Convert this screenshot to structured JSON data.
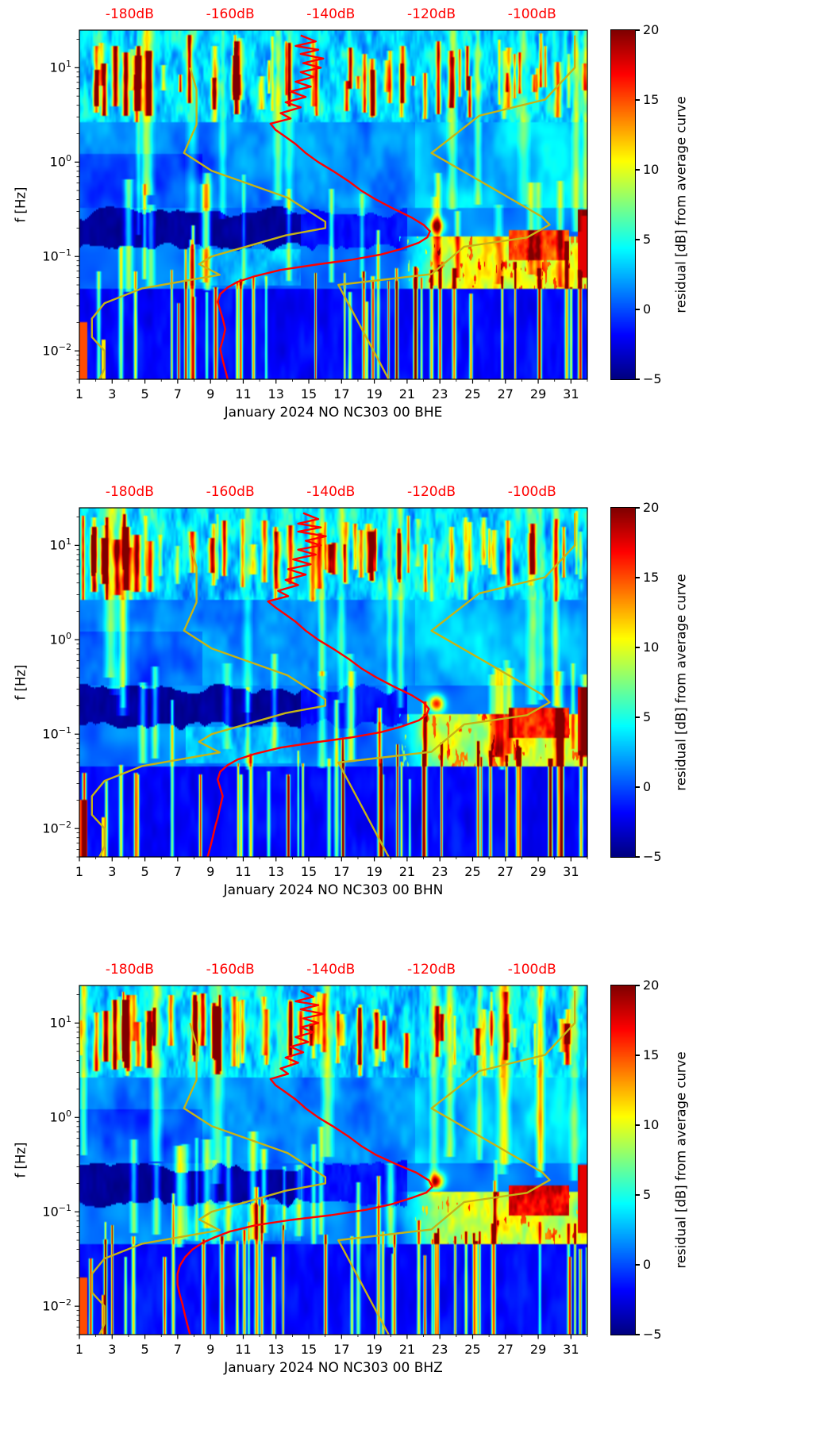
{
  "chart_data": [
    {
      "type": "heatmap",
      "component": "BHE",
      "title": "January 2024 NO NC303 00 BHE",
      "ylabel": "f [Hz]",
      "y_scale": "log",
      "y_range_hz": [
        0.005,
        25
      ],
      "y_tick_values": [
        10,
        1,
        0.1,
        0.01
      ],
      "x_tick_days": [
        1,
        3,
        5,
        7,
        9,
        11,
        13,
        15,
        17,
        19,
        21,
        23,
        25,
        27,
        29,
        31
      ],
      "x_range_days": [
        1,
        32
      ],
      "top_axis": {
        "tick_labels": [
          "-180dB",
          "-160dB",
          "-140dB",
          "-120dB",
          "-100dB"
        ],
        "tick_values": [
          -180,
          -160,
          -140,
          -120,
          -100
        ],
        "range_db": [
          -190,
          -89
        ],
        "color": "#ff0000"
      },
      "colorbar": {
        "label": "residual [dB] from average curve",
        "tick_values": [
          20,
          15,
          10,
          5,
          0,
          -5
        ],
        "range": [
          -5,
          20
        ],
        "colormap": "jet"
      },
      "curves": {
        "average_psd_color": "#ff0000",
        "model_color": "#c6b416",
        "average_psd_db_vs_hz": [
          [
            22,
            -146
          ],
          [
            19,
            -143
          ],
          [
            17,
            -147
          ],
          [
            15.5,
            -142.5
          ],
          [
            14,
            -146
          ],
          [
            12.5,
            -141.5
          ],
          [
            11.2,
            -145.5
          ],
          [
            10,
            -142
          ],
          [
            9,
            -146
          ],
          [
            8,
            -143.5
          ],
          [
            7.1,
            -147
          ],
          [
            6.3,
            -144
          ],
          [
            5.6,
            -148
          ],
          [
            4.9,
            -145
          ],
          [
            4.3,
            -149
          ],
          [
            3.8,
            -146
          ],
          [
            3.3,
            -150
          ],
          [
            2.9,
            -148
          ],
          [
            2.55,
            -152
          ],
          [
            2.2,
            -151
          ],
          [
            1.85,
            -149
          ],
          [
            1.55,
            -147
          ],
          [
            1.25,
            -145
          ],
          [
            1.0,
            -142.5
          ],
          [
            0.8,
            -139.5
          ],
          [
            0.63,
            -136.5
          ],
          [
            0.5,
            -134
          ],
          [
            0.4,
            -131
          ],
          [
            0.32,
            -127.5
          ],
          [
            0.26,
            -124
          ],
          [
            0.215,
            -121.5
          ],
          [
            0.185,
            -120.3
          ],
          [
            0.16,
            -120.8
          ],
          [
            0.14,
            -122.5
          ],
          [
            0.12,
            -126
          ],
          [
            0.105,
            -130
          ],
          [
            0.092,
            -136
          ],
          [
            0.082,
            -143
          ],
          [
            0.072,
            -150
          ],
          [
            0.062,
            -155
          ],
          [
            0.054,
            -158.5
          ],
          [
            0.047,
            -160.5
          ],
          [
            0.04,
            -162
          ],
          [
            0.033,
            -162.5
          ],
          [
            0.027,
            -162
          ],
          [
            0.022,
            -161.5
          ],
          [
            0.017,
            -161
          ],
          [
            0.013,
            -161.5
          ],
          [
            0.0105,
            -162
          ],
          [
            0.008,
            -161.5
          ],
          [
            0.0063,
            -161
          ],
          [
            0.005,
            -160.5
          ]
        ]
      },
      "heatmap": {
        "seed": 11
      }
    },
    {
      "type": "heatmap",
      "component": "BHN",
      "title": "January 2024 NO NC303 00 BHN",
      "ylabel": "f [Hz]",
      "y_scale": "log",
      "y_range_hz": [
        0.005,
        25
      ],
      "y_tick_values": [
        10,
        1,
        0.1,
        0.01
      ],
      "x_tick_days": [
        1,
        3,
        5,
        7,
        9,
        11,
        13,
        15,
        17,
        19,
        21,
        23,
        25,
        27,
        29,
        31
      ],
      "x_range_days": [
        1,
        32
      ],
      "top_axis": {
        "tick_labels": [
          "-180dB",
          "-160dB",
          "-140dB",
          "-120dB",
          "-100dB"
        ],
        "tick_values": [
          -180,
          -160,
          -140,
          -120,
          -100
        ],
        "range_db": [
          -190,
          -89
        ],
        "color": "#ff0000"
      },
      "colorbar": {
        "label": "residual [dB] from average curve",
        "tick_values": [
          20,
          15,
          10,
          5,
          0,
          -5
        ],
        "range": [
          -5,
          20
        ],
        "colormap": "jet"
      },
      "curves": {
        "average_psd_color": "#ff0000",
        "model_color": "#c6b416",
        "average_psd_db_vs_hz": [
          [
            22,
            -145.5
          ],
          [
            19,
            -142.5
          ],
          [
            17,
            -146.5
          ],
          [
            15.5,
            -142
          ],
          [
            14,
            -146.5
          ],
          [
            12.5,
            -141
          ],
          [
            11.2,
            -145
          ],
          [
            10,
            -142
          ],
          [
            9,
            -146.5
          ],
          [
            8,
            -143
          ],
          [
            7.1,
            -147.5
          ],
          [
            6.3,
            -144
          ],
          [
            5.6,
            -148.5
          ],
          [
            4.9,
            -145
          ],
          [
            4.3,
            -149
          ],
          [
            3.8,
            -146.5
          ],
          [
            3.3,
            -150.5
          ],
          [
            2.9,
            -148.5
          ],
          [
            2.55,
            -152.5
          ],
          [
            2.2,
            -151
          ],
          [
            1.85,
            -149
          ],
          [
            1.55,
            -147
          ],
          [
            1.25,
            -145
          ],
          [
            1.0,
            -142.5
          ],
          [
            0.8,
            -139.5
          ],
          [
            0.63,
            -136.5
          ],
          [
            0.5,
            -134
          ],
          [
            0.4,
            -131
          ],
          [
            0.32,
            -127.5
          ],
          [
            0.26,
            -124
          ],
          [
            0.215,
            -121.5
          ],
          [
            0.185,
            -120.5
          ],
          [
            0.16,
            -121
          ],
          [
            0.14,
            -122.5
          ],
          [
            0.12,
            -126
          ],
          [
            0.105,
            -130
          ],
          [
            0.092,
            -136
          ],
          [
            0.082,
            -143
          ],
          [
            0.072,
            -150
          ],
          [
            0.062,
            -155
          ],
          [
            0.054,
            -158.5
          ],
          [
            0.047,
            -160.5
          ],
          [
            0.04,
            -162
          ],
          [
            0.033,
            -162.5
          ],
          [
            0.027,
            -162
          ],
          [
            0.022,
            -161.5
          ],
          [
            0.017,
            -162
          ],
          [
            0.013,
            -162.5
          ],
          [
            0.0105,
            -163
          ],
          [
            0.008,
            -163.5
          ],
          [
            0.0063,
            -164
          ],
          [
            0.005,
            -164.5
          ]
        ]
      },
      "heatmap": {
        "seed": 22
      }
    },
    {
      "type": "heatmap",
      "component": "BHZ",
      "title": "January 2024 NO NC303 00 BHZ",
      "ylabel": "f [Hz]",
      "y_scale": "log",
      "y_range_hz": [
        0.005,
        25
      ],
      "y_tick_values": [
        10,
        1,
        0.1,
        0.01
      ],
      "x_tick_days": [
        1,
        3,
        5,
        7,
        9,
        11,
        13,
        15,
        17,
        19,
        21,
        23,
        25,
        27,
        29,
        31
      ],
      "x_range_days": [
        1,
        32
      ],
      "top_axis": {
        "tick_labels": [
          "-180dB",
          "-160dB",
          "-140dB",
          "-120dB",
          "-100dB"
        ],
        "tick_values": [
          -180,
          -160,
          -140,
          -120,
          -100
        ],
        "range_db": [
          -190,
          -89
        ],
        "color": "#ff0000"
      },
      "colorbar": {
        "label": "residual [dB] from average curve",
        "tick_values": [
          20,
          15,
          10,
          5,
          0,
          -5
        ],
        "range": [
          -5,
          20
        ],
        "colormap": "jet"
      },
      "curves": {
        "average_psd_color": "#ff0000",
        "model_color": "#c6b416",
        "average_psd_db_vs_hz": [
          [
            22,
            -146
          ],
          [
            19,
            -143.5
          ],
          [
            17,
            -147
          ],
          [
            15.5,
            -142.5
          ],
          [
            14,
            -146
          ],
          [
            12.5,
            -141.5
          ],
          [
            11.2,
            -145.5
          ],
          [
            10,
            -142.5
          ],
          [
            9,
            -146
          ],
          [
            8,
            -143.5
          ],
          [
            7.1,
            -147
          ],
          [
            6.3,
            -144.5
          ],
          [
            5.6,
            -148
          ],
          [
            4.9,
            -145.5
          ],
          [
            4.3,
            -149
          ],
          [
            3.8,
            -146.5
          ],
          [
            3.3,
            -150
          ],
          [
            2.9,
            -148.5
          ],
          [
            2.55,
            -152
          ],
          [
            2.2,
            -151
          ],
          [
            1.85,
            -149
          ],
          [
            1.55,
            -147
          ],
          [
            1.25,
            -145
          ],
          [
            1.0,
            -142.5
          ],
          [
            0.8,
            -139.5
          ],
          [
            0.63,
            -136.5
          ],
          [
            0.5,
            -134
          ],
          [
            0.4,
            -131
          ],
          [
            0.32,
            -127
          ],
          [
            0.26,
            -123
          ],
          [
            0.215,
            -120.5
          ],
          [
            0.185,
            -119.8
          ],
          [
            0.16,
            -121
          ],
          [
            0.14,
            -124
          ],
          [
            0.12,
            -128
          ],
          [
            0.105,
            -133
          ],
          [
            0.092,
            -140
          ],
          [
            0.082,
            -148
          ],
          [
            0.072,
            -155
          ],
          [
            0.062,
            -160
          ],
          [
            0.054,
            -163
          ],
          [
            0.047,
            -165.5
          ],
          [
            0.04,
            -167.5
          ],
          [
            0.033,
            -169
          ],
          [
            0.027,
            -170
          ],
          [
            0.022,
            -170.5
          ],
          [
            0.017,
            -170.5
          ],
          [
            0.013,
            -170
          ],
          [
            0.0105,
            -169.5
          ],
          [
            0.008,
            -169
          ],
          [
            0.0063,
            -168.5
          ],
          [
            0.005,
            -168
          ]
        ]
      },
      "heatmap": {
        "seed": 33
      }
    }
  ],
  "shared_noise_models": {
    "nlnm_db_vs_hz": [
      [
        10,
        -168.0
      ],
      [
        5.9,
        -166.7
      ],
      [
        2.5,
        -166.7
      ],
      [
        1.25,
        -169.2
      ],
      [
        0.81,
        -163.7
      ],
      [
        0.42,
        -148.6
      ],
      [
        0.233,
        -141.1
      ],
      [
        0.2,
        -141.1
      ],
      [
        0.167,
        -149.0
      ],
      [
        0.1,
        -163.7
      ],
      [
        0.083,
        -166.2
      ],
      [
        0.064,
        -162.1
      ],
      [
        0.046,
        -177.5
      ],
      [
        0.032,
        -185.0
      ],
      [
        0.022,
        -187.5
      ],
      [
        0.014,
        -187.5
      ],
      [
        0.01,
        -185.0
      ],
      [
        0.0065,
        -185.0
      ],
      [
        0.005,
        -186.0
      ]
    ],
    "nhnm_db_vs_hz": [
      [
        22,
        -91.5
      ],
      [
        10,
        -91.5
      ],
      [
        4.6,
        -97.4
      ],
      [
        3.1,
        -110.5
      ],
      [
        1.25,
        -120.0
      ],
      [
        0.263,
        -98.0
      ],
      [
        0.217,
        -96.5
      ],
      [
        0.159,
        -101.0
      ],
      [
        0.127,
        -113.5
      ],
      [
        0.065,
        -120.0
      ],
      [
        0.05,
        -138.5
      ],
      [
        0.005,
        -128.5
      ]
    ]
  }
}
